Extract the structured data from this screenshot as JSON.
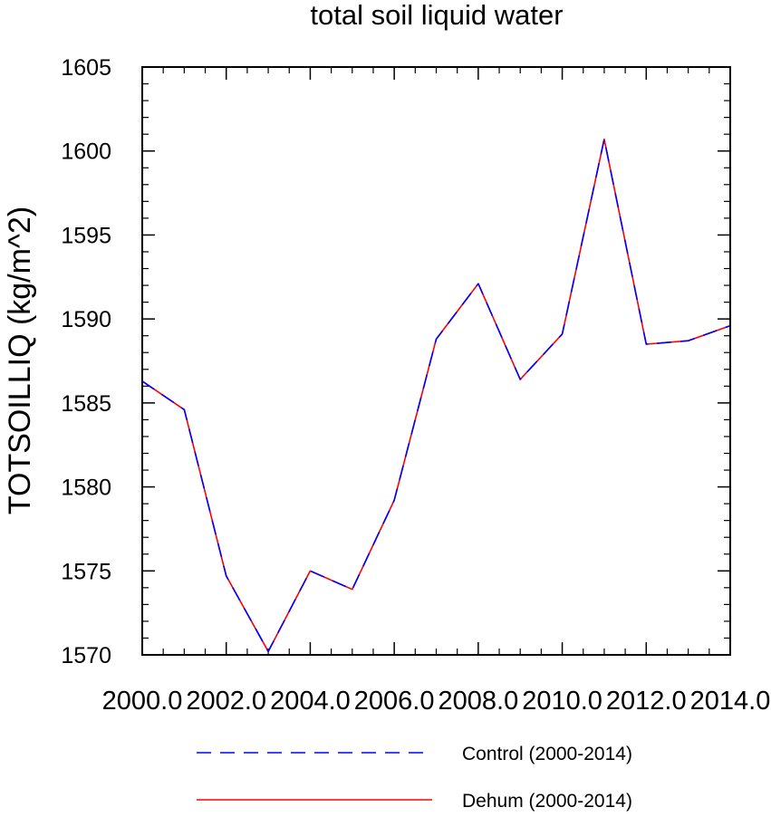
{
  "chart_data": {
    "type": "line",
    "title": "total soil liquid water",
    "xlabel": "",
    "ylabel": "TOTSOILLIQ  (kg/m^2)",
    "xlim": [
      2000,
      2014
    ],
    "ylim": [
      1570,
      1605
    ],
    "x_ticks": [
      2000,
      2002,
      2004,
      2006,
      2008,
      2010,
      2012,
      2014
    ],
    "x_tick_labels": [
      "2000.0",
      "2002.0",
      "2004.0",
      "2006.0",
      "2008.0",
      "2010.0",
      "2012.0",
      "2014.0"
    ],
    "y_ticks": [
      1570,
      1575,
      1580,
      1585,
      1590,
      1595,
      1600,
      1605
    ],
    "y_tick_labels": [
      "1570",
      "1575",
      "1580",
      "1585",
      "1590",
      "1595",
      "1600",
      "1605"
    ],
    "grid": false,
    "legend_position": "bottom",
    "x": [
      2000,
      2001,
      2002,
      2003,
      2004,
      2005,
      2006,
      2007,
      2008,
      2009,
      2010,
      2011,
      2012,
      2013,
      2014
    ],
    "series": [
      {
        "name": "Control (2000-2014)",
        "color": "#0000ff",
        "line_style": "dashed",
        "values": [
          1586.3,
          1584.6,
          1574.7,
          1570.2,
          1575.0,
          1573.9,
          1579.2,
          1588.8,
          1592.1,
          1586.4,
          1589.1,
          1600.7,
          1588.5,
          1588.7,
          1589.6
        ]
      },
      {
        "name": "Dehum (2000-2014)",
        "color": "#ff0000",
        "line_style": "solid",
        "values": [
          1586.3,
          1584.6,
          1574.7,
          1570.2,
          1575.0,
          1573.9,
          1579.2,
          1588.8,
          1592.1,
          1586.4,
          1589.1,
          1600.7,
          1588.5,
          1588.7,
          1589.6
        ]
      }
    ]
  }
}
